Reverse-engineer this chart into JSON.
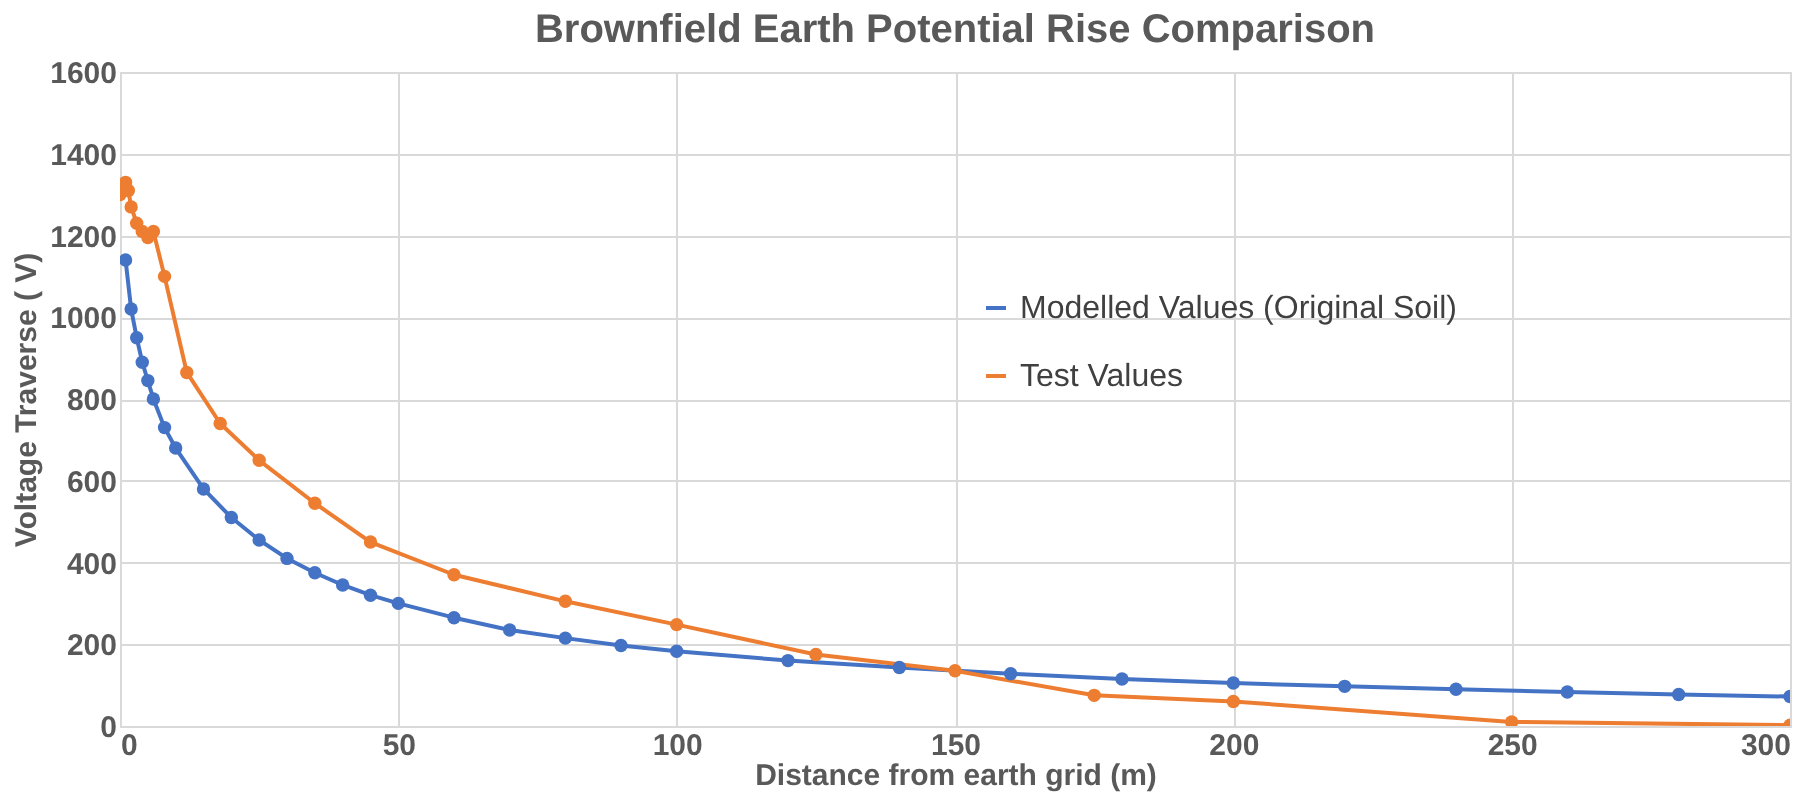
{
  "chart_data": {
    "type": "line",
    "title": "Brownfield Earth Potential Rise Comparison",
    "xlabel": "Distance from earth grid (m)",
    "ylabel": "Voltage Traverse ( V)",
    "xlim": [
      0,
      300
    ],
    "xticks": [
      0,
      50,
      100,
      150,
      200,
      250,
      300
    ],
    "ylim": [
      0,
      1600
    ],
    "yticks": [
      0,
      200,
      400,
      600,
      800,
      1000,
      1200,
      1400,
      1600
    ],
    "grid": true,
    "legend": "right",
    "marker": "circle",
    "line_style": "solid",
    "series": [
      {
        "name": "Modelled Values (Original Soil)",
        "color": "#4472c4",
        "x": [
          1,
          2,
          3,
          4,
          5,
          6,
          8,
          10,
          15,
          20,
          25,
          30,
          35,
          40,
          45,
          50,
          60,
          70,
          80,
          90,
          100,
          120,
          140,
          160,
          180,
          200,
          220,
          240,
          260,
          280,
          300
        ],
        "values": [
          1140,
          1020,
          950,
          890,
          845,
          800,
          730,
          680,
          580,
          510,
          455,
          410,
          375,
          345,
          320,
          300,
          265,
          235,
          215,
          197,
          183,
          160,
          143,
          128,
          115,
          105,
          97,
          90,
          83,
          77,
          72
        ]
      },
      {
        "name": "Test Values",
        "color": "#ed7d31",
        "x": [
          0,
          0.5,
          1,
          1.5,
          2,
          3,
          4,
          5,
          6,
          8,
          12,
          18,
          25,
          35,
          45,
          60,
          80,
          100,
          125,
          150,
          175,
          200,
          250,
          300
        ],
        "values": [
          1300,
          1320,
          1330,
          1310,
          1270,
          1230,
          1210,
          1195,
          1210,
          1100,
          865,
          740,
          650,
          545,
          450,
          370,
          305,
          248,
          175,
          135,
          75,
          60,
          10,
          2
        ]
      }
    ]
  }
}
